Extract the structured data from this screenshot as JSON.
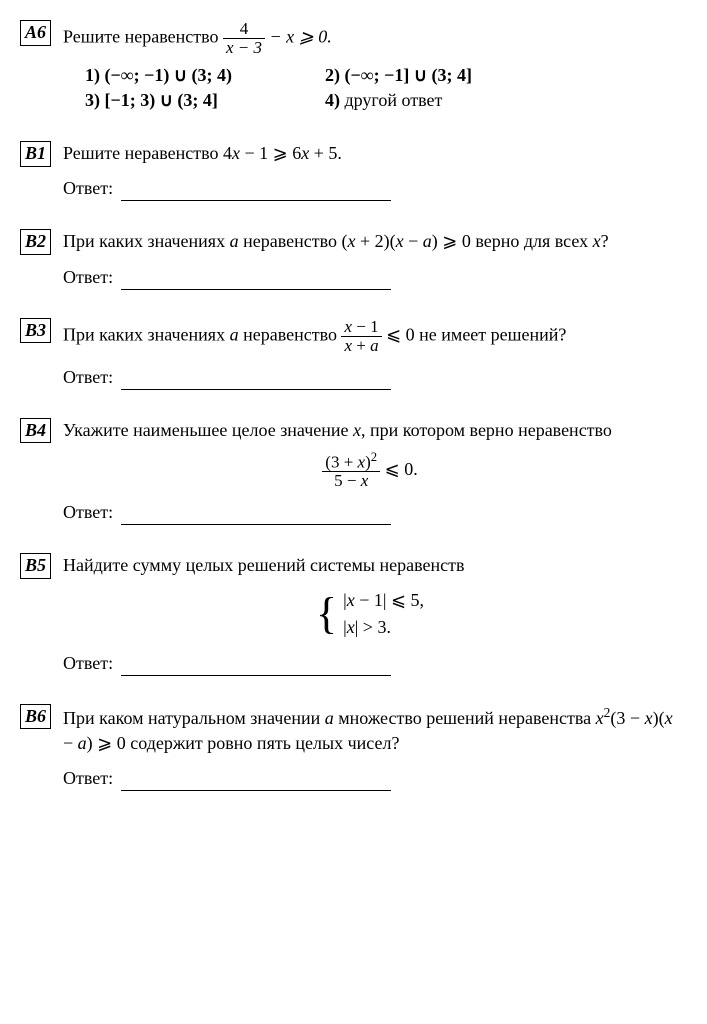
{
  "A6": {
    "label": "A6",
    "prompt_pre": "Решите неравенство ",
    "frac_num": "4",
    "frac_den": "x − 3",
    "prompt_post": " − x ⩾ 0.",
    "opt1_n": "1) ",
    "opt1": "(−∞; −1) ∪ (3; 4)",
    "opt2_n": "2) ",
    "opt2": "(−∞; −1] ∪ (3; 4]",
    "opt3_n": "3) ",
    "opt3": "[−1; 3) ∪ (3; 4]",
    "opt4_n": "4) ",
    "opt4": "другой ответ"
  },
  "B1": {
    "label": "B1",
    "prompt_pre": "Решите неравенство  4",
    "prompt_mid1": "x",
    "prompt_mid2": " − 1 ⩾ 6",
    "prompt_mid3": "x",
    "prompt_post": " + 5.",
    "answer": "Ответ:"
  },
  "B2": {
    "label": "B2",
    "t1": "При каких значениях ",
    "a1": "a",
    "t2": " неравенство (",
    "x1": "x",
    "t3": " + 2)(",
    "x2": "x",
    "t4": " − ",
    "a2": "a",
    "t5": ") ⩾ 0 верно для всех ",
    "x3": "x",
    "t6": "?",
    "answer": "Ответ:"
  },
  "B3": {
    "label": "B3",
    "t1": "При каких значениях ",
    "a1": "a",
    "t2": " неравенство ",
    "num_x": "x",
    "num_t": " − 1",
    "den_x": "x",
    "den_t": " + ",
    "den_a": "a",
    "t3": " ⩽ 0 не имеет решений?",
    "answer": "Ответ:"
  },
  "B4": {
    "label": "B4",
    "t1": "Укажите наименьшее целое значение ",
    "x1": "x",
    "t2": ", при котором верно неравенство",
    "num_pre": "(3 + ",
    "num_x": "x",
    "num_post": ")",
    "num_sup": "2",
    "den_pre": "5 − ",
    "den_x": "x",
    "rel": " ⩽ 0.",
    "answer": "Ответ:"
  },
  "B5": {
    "label": "B5",
    "t1": "Найдите сумму целых решений системы неравенств",
    "l1_pre": "|",
    "l1_x": "x",
    "l1_post": " − 1| ⩽ 5,",
    "l2_pre": "|",
    "l2_x": "x",
    "l2_post": "| > 3.",
    "answer": "Ответ:"
  },
  "B6": {
    "label": "B6",
    "t1": "При каком натуральном значении ",
    "a1": "a",
    "t2": " множество решений неравенства ",
    "x1": "x",
    "sup": "2",
    "t3": "(3 − ",
    "x2": "x",
    "t4": ")(",
    "x3": "x",
    "t5": " − ",
    "a2": "a",
    "t6": ") ⩾ 0 содержит ровно пять целых чисел?",
    "answer": "Ответ:"
  }
}
